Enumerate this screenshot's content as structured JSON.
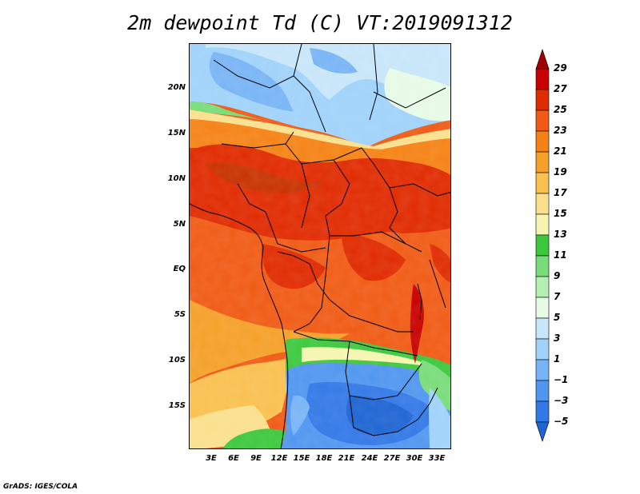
{
  "title": "2m dewpoint Td (C) VT:2019091312",
  "credit": "GrADS: IGES/COLA",
  "map": {
    "lat_labels": [
      "20N",
      "15N",
      "10N",
      "5N",
      "EQ",
      "5S",
      "10S",
      "15S"
    ],
    "lon_labels": [
      "3E",
      "6E",
      "9E",
      "12E",
      "15E",
      "18E",
      "21E",
      "24E",
      "27E",
      "30E",
      "33E"
    ]
  },
  "legend": {
    "labels": [
      "29",
      "27",
      "25",
      "23",
      "21",
      "19",
      "17",
      "15",
      "13",
      "11",
      "9",
      "7",
      "5",
      "3",
      "1",
      "−1",
      "−3",
      "−5"
    ],
    "colors": [
      "#a00000",
      "#c80000",
      "#e02a00",
      "#f05a14",
      "#f58214",
      "#f5a028",
      "#fac050",
      "#fae08c",
      "#f5f5af",
      "#3cc83c",
      "#78dc78",
      "#b4f0b4",
      "#e6fae6",
      "#c8e6fa",
      "#a0d2fa",
      "#78b4f5",
      "#5096f0",
      "#3278e6",
      "#1e64d2"
    ]
  }
}
